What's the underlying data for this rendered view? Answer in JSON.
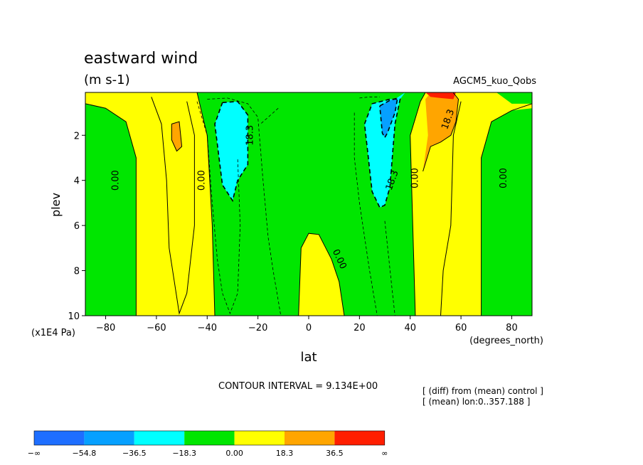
{
  "chart_data": {
    "type": "contour",
    "title": "eastward wind",
    "units": "(m s-1)",
    "dataset_label": "AGCM5_kuo_Qobs",
    "xlabel": "lat",
    "xunits": "(degrees_north)",
    "ylabel": "plev",
    "yunits": "(x1E4 Pa)",
    "xlim": [
      -88,
      88
    ],
    "ylim": [
      0.1,
      10
    ],
    "y_inverted": true,
    "xticks": [
      -80,
      -60,
      -40,
      -20,
      0,
      20,
      40,
      60,
      80
    ],
    "xtick_labels": [
      "−80",
      "−60",
      "−40",
      "−20",
      "0",
      "20",
      "40",
      "60",
      "80"
    ],
    "yticks": [
      2,
      4,
      6,
      8,
      10
    ],
    "ytick_labels": [
      "2",
      "4",
      "6",
      "8",
      "10"
    ],
    "contour_interval_text": "CONTOUR INTERVAL = 9.134E+00",
    "notes": [
      "[ (diff) from (mean) control ]",
      "[ (mean) lon:0..357.188 ]"
    ],
    "contour_labels": [
      {
        "text": "0.00",
        "x": -76,
        "y": 4.0,
        "rotate": -90
      },
      {
        "text": "0.00",
        "x": -42,
        "y": 4.0,
        "rotate": -90
      },
      {
        "text": "18.3",
        "x": -23,
        "y": 2.0,
        "rotate": -90
      },
      {
        "text": "18.3",
        "x": 33,
        "y": 4.0,
        "rotate": -70
      },
      {
        "text": "0.00",
        "x": 42,
        "y": 3.9,
        "rotate": -90
      },
      {
        "text": "18.3",
        "x": 55,
        "y": 1.3,
        "rotate": -70
      },
      {
        "text": "0.00",
        "x": 77,
        "y": 3.9,
        "rotate": -90
      },
      {
        "text": "0.00",
        "x": 12,
        "y": 7.5,
        "rotate": 65
      }
    ],
    "colorbar": {
      "levels": [
        "−∞",
        "−54.8",
        "−36.5",
        "−18.3",
        "0.00",
        "18.3",
        "36.5",
        "∞"
      ],
      "colors": [
        "#1e6eff",
        "#06a0ff",
        "#00ffff",
        "#00e600",
        "#ffff00",
        "#ffa500",
        "#ff1e00"
      ]
    },
    "regions": {
      "yellow": [
        [
          [
            -88,
            0.1
          ],
          [
            -88,
            0.6
          ],
          [
            -80,
            0.8
          ],
          [
            -72,
            1.4
          ],
          [
            -68,
            3
          ],
          [
            -68,
            10
          ],
          [
            -37,
            10
          ],
          [
            -38,
            6
          ],
          [
            -40,
            2
          ],
          [
            -44,
            0.1
          ]
        ],
        [
          [
            -4,
            10
          ],
          [
            -3,
            7
          ],
          [
            0,
            6.35
          ],
          [
            4,
            6.4
          ],
          [
            9,
            7.5
          ],
          [
            12,
            8.5
          ],
          [
            14,
            10
          ]
        ],
        [
          [
            42,
            10
          ],
          [
            40,
            2
          ],
          [
            44,
            0.5
          ],
          [
            46,
            0.1
          ],
          [
            74,
            0.1
          ],
          [
            80,
            0.6
          ],
          [
            88,
            0.6
          ],
          [
            88,
            0.8
          ],
          [
            80,
            0.9
          ],
          [
            72,
            1.4
          ],
          [
            68,
            3
          ],
          [
            68,
            10
          ]
        ]
      ],
      "orange": [
        [
          [
            -54,
            1.5
          ],
          [
            -51,
            1.4
          ],
          [
            -50,
            2.5
          ],
          [
            -52,
            2.7
          ],
          [
            -54,
            2.2
          ]
        ],
        [
          [
            45,
            3.6
          ],
          [
            48,
            2.5
          ],
          [
            52,
            2.3
          ],
          [
            56,
            2
          ],
          [
            58,
            1.4
          ],
          [
            59,
            0.4
          ],
          [
            57,
            0.12
          ],
          [
            48,
            0.12
          ],
          [
            46,
            0.4
          ],
          [
            47,
            2
          ]
        ]
      ],
      "red": [
        [
          [
            46,
            0.1
          ],
          [
            58,
            0.1
          ],
          [
            57,
            0.4
          ],
          [
            52,
            0.35
          ],
          [
            48,
            0.3
          ]
        ]
      ],
      "cyan": [
        [
          [
            -34,
            0.55
          ],
          [
            -28,
            0.5
          ],
          [
            -24,
            1.1
          ],
          [
            -24,
            3.3
          ],
          [
            -28,
            4
          ],
          [
            -30,
            4.9
          ],
          [
            -34,
            4.2
          ],
          [
            -37,
            1.5
          ]
        ],
        [
          [
            22,
            1.5
          ],
          [
            25,
            0.6
          ],
          [
            32,
            0.4
          ],
          [
            36,
            0.4
          ],
          [
            34,
            1.5
          ],
          [
            32,
            4.3
          ],
          [
            30,
            5.1
          ],
          [
            28,
            5.2
          ],
          [
            25,
            4.5
          ],
          [
            24,
            3.5
          ],
          [
            23,
            2.5
          ]
        ],
        [
          [
            34,
            0.4
          ],
          [
            38,
            0.1
          ],
          [
            36,
            0.4
          ]
        ]
      ],
      "mediumblue": [
        [
          [
            28,
            0.7
          ],
          [
            32,
            0.45
          ],
          [
            35,
            0.35
          ],
          [
            34,
            1
          ],
          [
            31,
            1.9
          ],
          [
            30,
            2.1
          ],
          [
            29,
            1.9
          ]
        ]
      ]
    },
    "contours": {
      "solid": [
        [
          [
            -88,
            0.6
          ],
          [
            -80,
            0.8
          ],
          [
            -72,
            1.4
          ],
          [
            -68,
            3
          ],
          [
            -68,
            10
          ]
        ],
        [
          [
            -44,
            0.1
          ],
          [
            -40,
            2
          ],
          [
            -38,
            6
          ],
          [
            -37,
            10
          ]
        ],
        [
          [
            -4,
            10
          ],
          [
            -3,
            7
          ],
          [
            0,
            6.35
          ],
          [
            4,
            6.4
          ],
          [
            9,
            7.5
          ],
          [
            12,
            8.5
          ],
          [
            14,
            10
          ]
        ],
        [
          [
            42,
            10
          ],
          [
            40,
            2
          ],
          [
            44,
            0.5
          ],
          [
            46,
            0.1
          ]
        ],
        [
          [
            88,
            0.6
          ],
          [
            80,
            0.9
          ],
          [
            72,
            1.4
          ],
          [
            68,
            3
          ],
          [
            68,
            10
          ]
        ],
        [
          [
            -54,
            1.5
          ],
          [
            -51,
            1.4
          ],
          [
            -50,
            2.5
          ],
          [
            -52,
            2.7
          ],
          [
            -54,
            2.2
          ],
          [
            -54,
            1.5
          ]
        ],
        [
          [
            45,
            3.6
          ],
          [
            48,
            2.5
          ],
          [
            52,
            2.3
          ],
          [
            56,
            2
          ],
          [
            58,
            1.4
          ],
          [
            59,
            0.4
          ],
          [
            57,
            0.12
          ]
        ],
        [
          [
            -62,
            0.3
          ],
          [
            -58,
            1.5
          ],
          [
            -56,
            4
          ],
          [
            -55,
            7
          ],
          [
            -51,
            9.9
          ],
          [
            -48,
            9
          ],
          [
            -45,
            6
          ],
          [
            -45,
            2
          ],
          [
            -48,
            0.5
          ]
        ],
        [
          [
            60,
            0.5
          ],
          [
            57,
            2
          ],
          [
            56,
            6
          ],
          [
            53,
            8
          ],
          [
            52,
            10
          ]
        ]
      ],
      "dashed_bold": [
        [
          [
            -34,
            0.55
          ],
          [
            -28,
            0.5
          ],
          [
            -24,
            1.1
          ],
          [
            -24,
            3.3
          ],
          [
            -28,
            4
          ],
          [
            -30,
            4.9
          ],
          [
            -34,
            4.2
          ],
          [
            -37,
            1.5
          ],
          [
            -34,
            0.55
          ]
        ],
        [
          [
            22,
            1.5
          ],
          [
            25,
            0.6
          ],
          [
            32,
            0.4
          ],
          [
            36,
            0.4
          ],
          [
            34,
            1.5
          ],
          [
            32,
            4.3
          ],
          [
            30,
            5.1
          ],
          [
            28,
            5.2
          ],
          [
            25,
            4.5
          ],
          [
            24,
            3.5
          ],
          [
            23,
            2.5
          ],
          [
            22,
            1.5
          ]
        ],
        [
          [
            28,
            0.7
          ],
          [
            32,
            0.45
          ],
          [
            35,
            0.35
          ],
          [
            34,
            1
          ],
          [
            31,
            1.9
          ],
          [
            30,
            2.1
          ],
          [
            29,
            1.9
          ],
          [
            28,
            0.7
          ]
        ]
      ],
      "dashed_thin": [
        [
          [
            -40,
            0.4
          ],
          [
            -32,
            0.35
          ],
          [
            -24,
            0.6
          ],
          [
            -20,
            1.2
          ],
          [
            -18,
            4
          ],
          [
            -16,
            6.5
          ],
          [
            -14,
            8
          ],
          [
            -11,
            10
          ]
        ],
        [
          [
            -44,
            0.5
          ],
          [
            -40,
            2
          ],
          [
            -38,
            5
          ],
          [
            -36,
            7.5
          ],
          [
            -34,
            9
          ],
          [
            -31,
            9.9
          ],
          [
            -28,
            9
          ],
          [
            -27,
            6
          ],
          [
            -28,
            3
          ]
        ],
        [
          [
            -12,
            0.8
          ],
          [
            -16,
            1.2
          ],
          [
            -19,
            1.5
          ]
        ],
        [
          [
            18,
            1
          ],
          [
            18,
            3
          ],
          [
            20,
            5
          ],
          [
            24,
            8
          ],
          [
            27,
            10
          ]
        ],
        [
          [
            20,
            0.35
          ],
          [
            24,
            0.3
          ],
          [
            28,
            0.3
          ]
        ],
        [
          [
            30,
            5.8
          ],
          [
            33,
            9
          ],
          [
            34,
            10
          ]
        ]
      ]
    }
  }
}
